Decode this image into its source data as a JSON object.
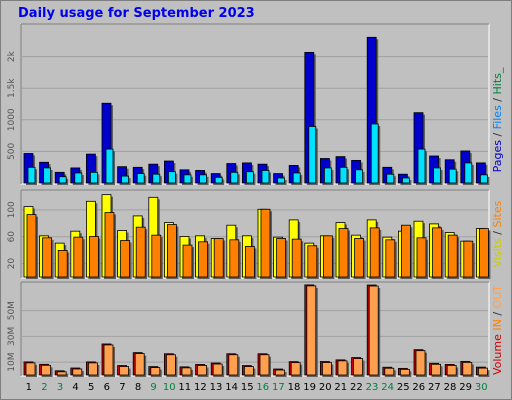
{
  "title": "Daily usage for September 2023",
  "colors": {
    "pages": "#0000cc",
    "files": "#0080ff",
    "hits": "#00cc00",
    "visits": "#ffff00",
    "sites": "#ff8000",
    "in": "#ff8000",
    "out": "#ffa050",
    "volume": "#cc0000",
    "weekday": "#000000",
    "weekend": "#008040"
  },
  "side_labels": {
    "top": [
      {
        "text": "Pages",
        "color": "#0000cc"
      },
      {
        "text": " / ",
        "color": "#333333"
      },
      {
        "text": "Files",
        "color": "#0080ff"
      },
      {
        "text": " / ",
        "color": "#333333"
      },
      {
        "text": "Hits_",
        "color": "#008040"
      }
    ],
    "mid": [
      {
        "text": "Visits",
        "color": "#cccc00"
      },
      {
        "text": " / ",
        "color": "#333333"
      },
      {
        "text": "Sites",
        "color": "#ff8000"
      }
    ],
    "bottom": [
      {
        "text": "Volume",
        "color": "#cc0000"
      },
      {
        "text": "  ",
        "color": "#333333"
      },
      {
        "text": "IN",
        "color": "#ff8000"
      },
      {
        "text": " / ",
        "color": "#333333"
      },
      {
        "text": "OUT",
        "color": "#ffa050"
      }
    ]
  },
  "chart_data": [
    {
      "type": "bar",
      "name": "pages-files-hits",
      "categories": [
        "1",
        "2",
        "3",
        "4",
        "5",
        "6",
        "7",
        "8",
        "9",
        "10",
        "11",
        "12",
        "13",
        "14",
        "15",
        "16",
        "17",
        "18",
        "19",
        "20",
        "21",
        "22",
        "23",
        "24",
        "25",
        "26",
        "27",
        "28",
        "29",
        "30"
      ],
      "weekend_days": [
        2,
        3,
        9,
        10,
        16,
        17,
        23,
        24,
        30
      ],
      "series": [
        {
          "name": "Pages",
          "values": [
            470,
            330,
            170,
            240,
            460,
            1270,
            260,
            250,
            300,
            350,
            210,
            200,
            150,
            310,
            320,
            300,
            150,
            280,
            2080,
            390,
            420,
            360,
            2320,
            250,
            140,
            1120,
            430,
            370,
            510,
            320
          ]
        },
        {
          "name": "Files",
          "values": [
            250,
            240,
            100,
            160,
            170,
            540,
            110,
            150,
            140,
            180,
            130,
            130,
            90,
            170,
            180,
            200,
            80,
            160,
            900,
            240,
            250,
            210,
            940,
            140,
            80,
            540,
            240,
            220,
            320,
            130
          ]
        }
      ],
      "yticks": [
        500,
        1000,
        1500,
        2000
      ],
      "ytick_labels": [
        "500",
        "1000",
        "1.5k",
        "2k"
      ],
      "ylim": [
        0,
        2500
      ]
    },
    {
      "type": "bar",
      "name": "visits-sites",
      "categories": [
        "1",
        "2",
        "3",
        "4",
        "5",
        "6",
        "7",
        "8",
        "9",
        "10",
        "11",
        "12",
        "13",
        "14",
        "15",
        "16",
        "17",
        "18",
        "19",
        "20",
        "21",
        "22",
        "23",
        "24",
        "25",
        "26",
        "27",
        "28",
        "29",
        "30"
      ],
      "series": [
        {
          "name": "Visits",
          "values": [
            106,
            62,
            51,
            69,
            114,
            124,
            70,
            92,
            120,
            82,
            61,
            62,
            58,
            78,
            62,
            102,
            60,
            86,
            51,
            62,
            82,
            63,
            86,
            60,
            69,
            84,
            80,
            67,
            54,
            73
          ]
        },
        {
          "name": "Sites",
          "values": [
            94,
            59,
            40,
            60,
            61,
            97,
            55,
            75,
            63,
            79,
            48,
            53,
            58,
            56,
            46,
            102,
            58,
            57,
            47,
            62,
            73,
            58,
            74,
            56,
            78,
            59,
            74,
            63,
            54,
            73
          ]
        }
      ],
      "yticks": [
        20,
        60,
        100
      ],
      "ylim": [
        0,
        128
      ]
    },
    {
      "type": "bar",
      "name": "volume",
      "categories": [
        "1",
        "2",
        "3",
        "4",
        "5",
        "6",
        "7",
        "8",
        "9",
        "10",
        "11",
        "12",
        "13",
        "14",
        "15",
        "16",
        "17",
        "18",
        "19",
        "20",
        "21",
        "22",
        "23",
        "24",
        "25",
        "26",
        "27",
        "28",
        "29",
        "30"
      ],
      "series": [
        {
          "name": "Volume",
          "unit": "MB",
          "values": [
            10.3,
            8.4,
            3.3,
            5.5,
            10.3,
            24.4,
            7.4,
            17.6,
            6.6,
            16.7,
            6.4,
            8.3,
            9.4,
            16.7,
            7.4,
            16.7,
            4.7,
            10.5,
            70.8,
            10.6,
            11.9,
            13.7,
            70.7,
            6.1,
            5.2,
            19.9,
            9.2,
            8.3,
            10.7,
            6.2
          ]
        }
      ],
      "yticks": [
        10,
        30,
        50
      ],
      "ytick_labels": [
        "10M",
        "30M",
        "50M"
      ],
      "ylim": [
        0,
        71.5
      ]
    }
  ]
}
